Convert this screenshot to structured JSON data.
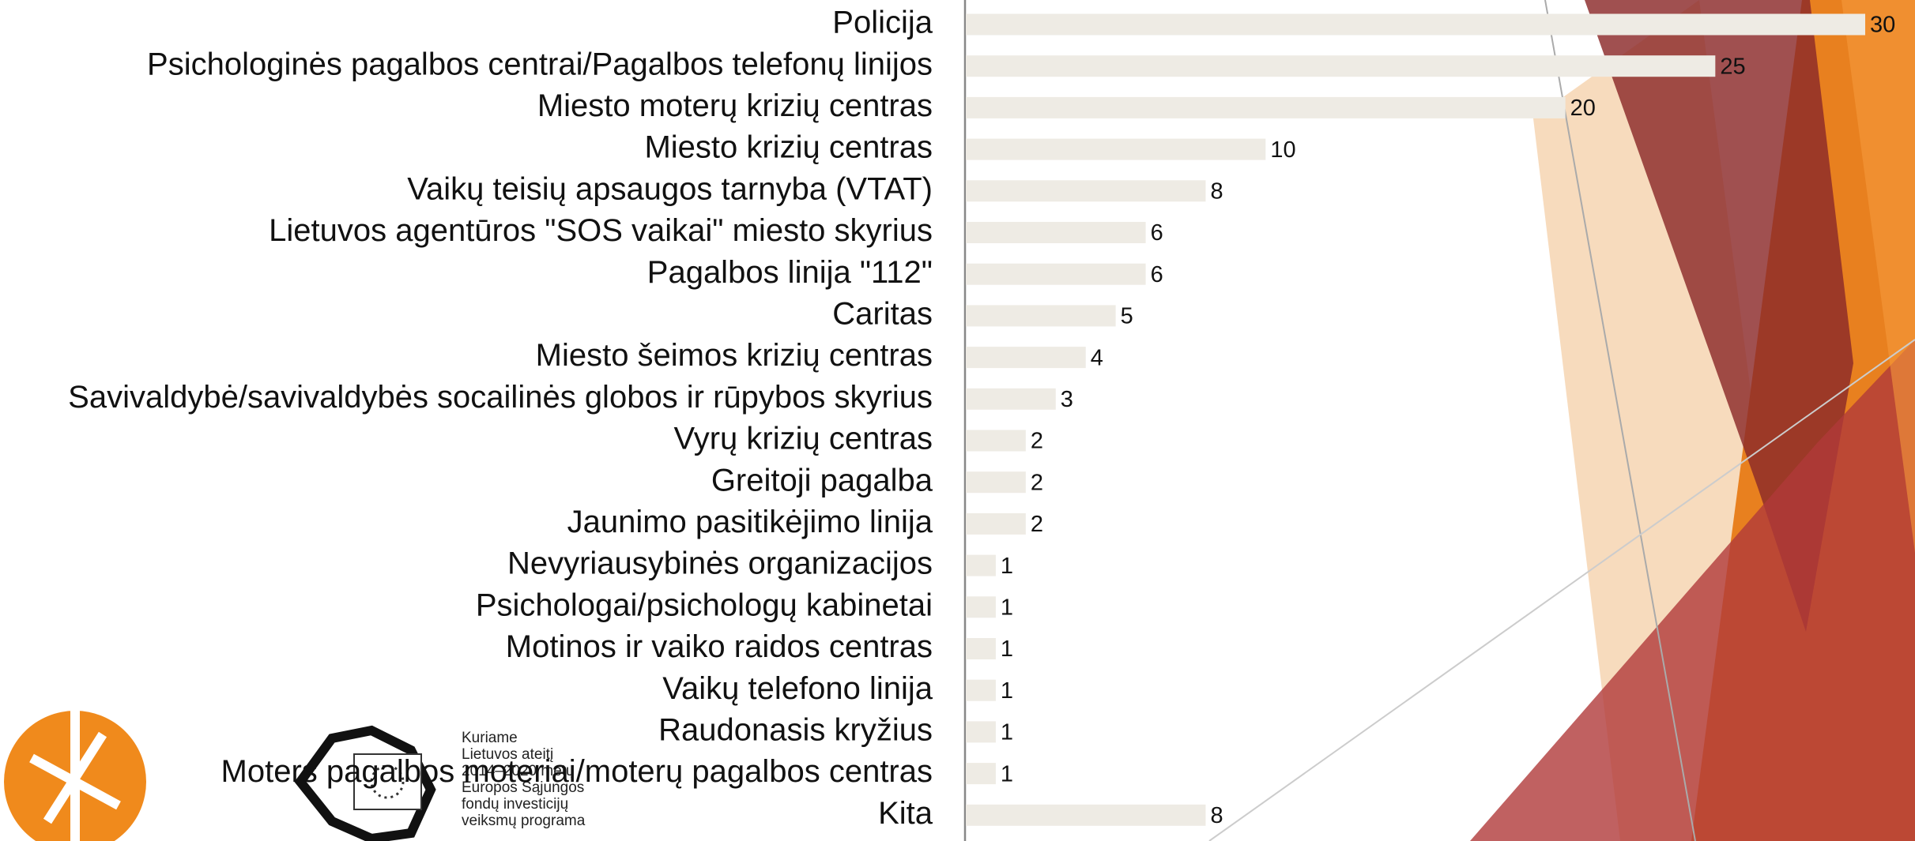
{
  "chart_data": {
    "type": "bar",
    "orientation": "horizontal",
    "categories": [
      "Policija",
      "Psichologinės pagalbos centrai/Pagalbos telefonų linijos",
      "Miesto moterų krizių centras",
      "Miesto krizių centras",
      "Vaikų teisių apsaugos tarnyba (VTAT)",
      "Lietuvos agentūros \"SOS vaikai\" miesto skyrius",
      "Pagalbos linija \"112\"",
      "Caritas",
      "Miesto šeimos krizių centras",
      "Savivaldybė/savivaldybės socailinės globos ir rūpybos skyrius",
      "Vyrų krizių centras",
      "Greitoji pagalba",
      "Jaunimo pasitikėjimo linija",
      "Nevyriausybinės organizacijos",
      "Psichologai/psichologų kabinetai",
      "Motinos ir vaiko raidos centras",
      "Vaikų telefono linija",
      "Raudonasis kryžius",
      "Moters pagalbos moteriai/moterų pagalbos centras",
      "Kita"
    ],
    "values": [
      30,
      25,
      20,
      10,
      8,
      6,
      6,
      5,
      4,
      3,
      2,
      2,
      2,
      1,
      1,
      1,
      1,
      1,
      1,
      8
    ],
    "color": "#eeebe4",
    "xlim": [
      0,
      30
    ]
  },
  "footer": {
    "eu_logo_text": [
      "Kuriame",
      "Lietuvos ateitį",
      "2014–2020 metų",
      "Europos Sąjungos",
      "fondų investicijų",
      "veiksmų programa"
    ]
  }
}
